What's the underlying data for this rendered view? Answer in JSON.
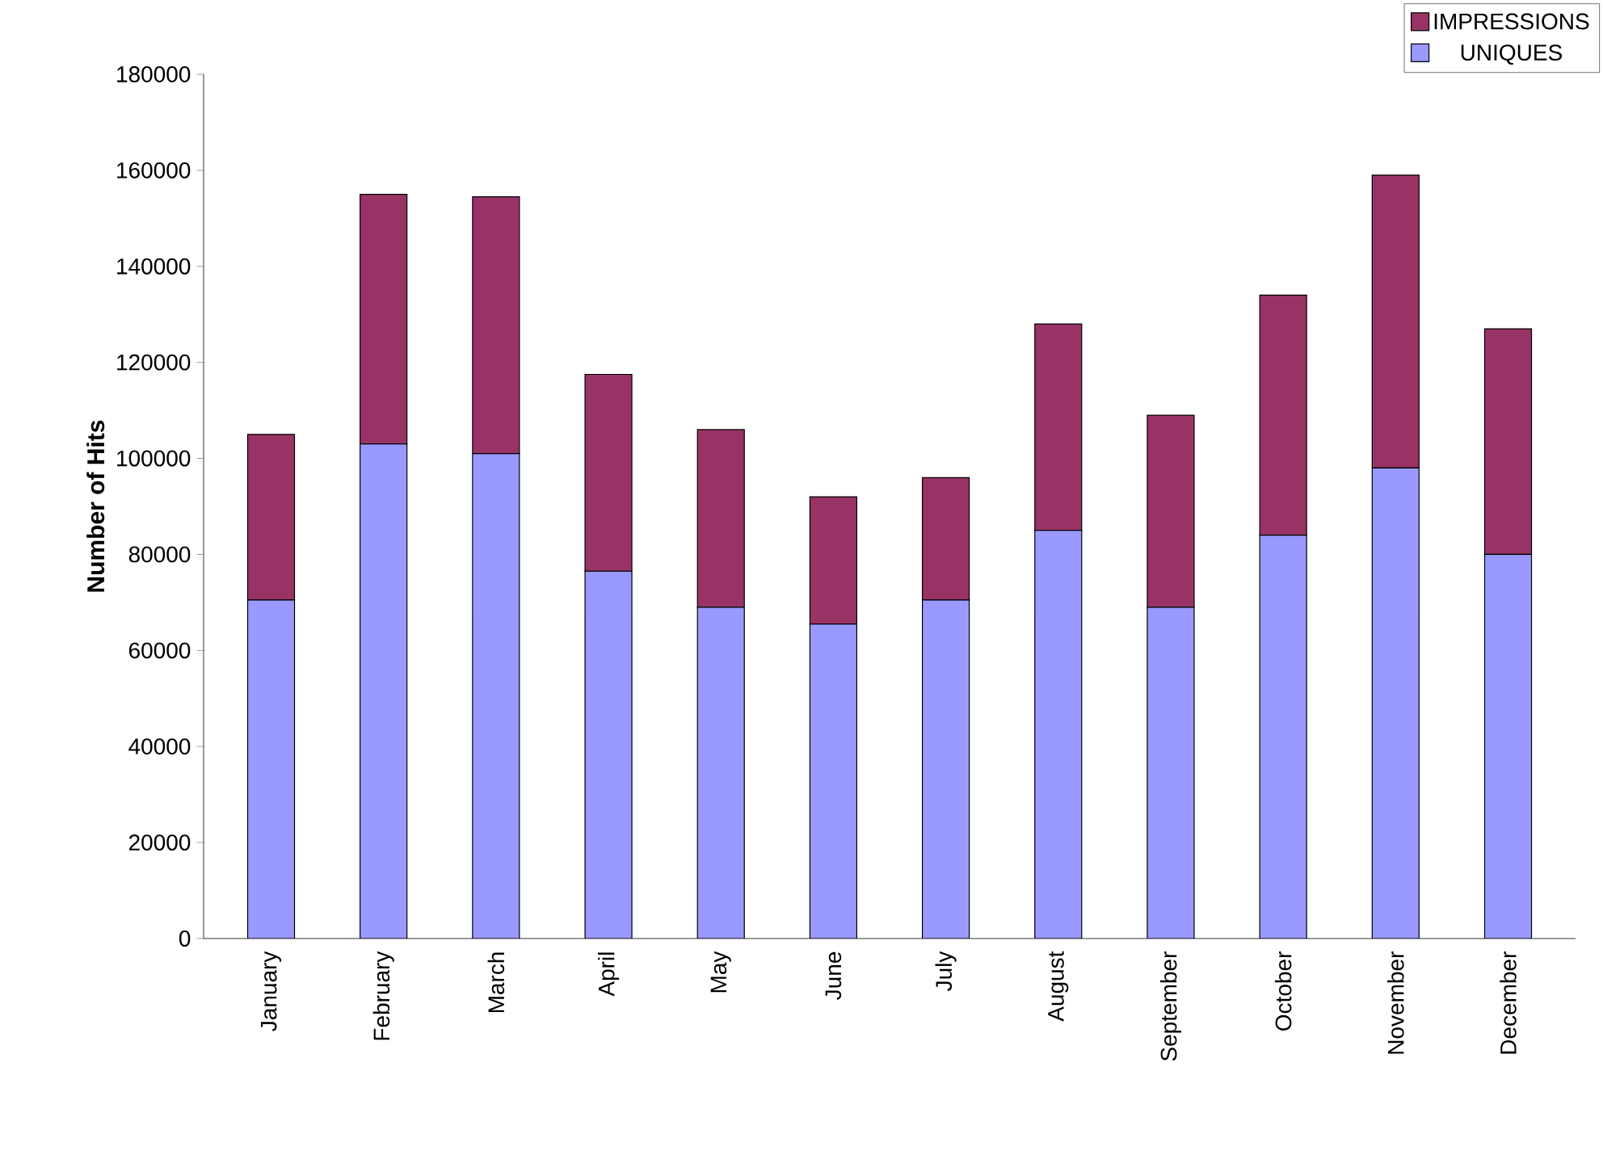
{
  "chart_data": {
    "type": "bar",
    "stacked": true,
    "ylabel": "Number of Hits",
    "categories": [
      "January",
      "February",
      "March",
      "April",
      "May",
      "June",
      "July",
      "August",
      "September",
      "October",
      "November",
      "December"
    ],
    "series": [
      {
        "name": "UNIQUES",
        "color": "#9999ff",
        "values": [
          70500,
          103000,
          101000,
          76500,
          69000,
          65500,
          70500,
          85000,
          69000,
          84000,
          98000,
          80000
        ]
      },
      {
        "name": "IMPRESSIONS",
        "color": "#993366",
        "values": [
          34500,
          52000,
          53500,
          41000,
          37000,
          26500,
          25500,
          43000,
          40000,
          50000,
          61000,
          47000
        ]
      }
    ],
    "ylim": [
      0,
      180000
    ],
    "yticks": [
      0,
      20000,
      40000,
      60000,
      80000,
      100000,
      120000,
      140000,
      160000,
      180000
    ],
    "legend": "top right",
    "grid": false
  }
}
